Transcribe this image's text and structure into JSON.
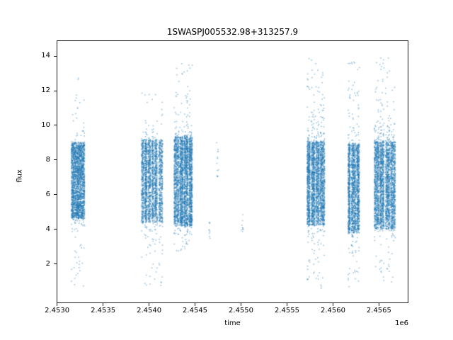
{
  "chart_data": {
    "type": "scatter",
    "title": "1SWASPJ005532.98+313257.9",
    "xlabel": "time",
    "ylabel": "flux",
    "x_offset_label": "1e6",
    "xlim": [
      2452995,
      2456820
    ],
    "ylim": [
      -0.25,
      14.9
    ],
    "grid": false,
    "legend": "none",
    "point_color": "#1f77b4",
    "background_color": "#ffffff",
    "xticks": [
      {
        "value": 2453000,
        "label": "2.4530"
      },
      {
        "value": 2453500,
        "label": "2.4535"
      },
      {
        "value": 2454000,
        "label": "2.4540"
      },
      {
        "value": 2454500,
        "label": "2.4545"
      },
      {
        "value": 2455000,
        "label": "2.4550"
      },
      {
        "value": 2455500,
        "label": "2.4555"
      },
      {
        "value": 2456000,
        "label": "2.4560"
      },
      {
        "value": 2456500,
        "label": "2.4565"
      }
    ],
    "yticks": [
      {
        "value": 2,
        "label": "2"
      },
      {
        "value": 4,
        "label": "4"
      },
      {
        "value": 6,
        "label": "6"
      },
      {
        "value": 8,
        "label": "8"
      },
      {
        "value": 10,
        "label": "10"
      },
      {
        "value": 12,
        "label": "12"
      },
      {
        "value": 14,
        "label": "14"
      }
    ],
    "clusters": [
      {
        "n": 2400,
        "stripes": [
          [
            2453155,
            2453300,
            1
          ]
        ],
        "band": [
          4.7,
          8.95
        ],
        "up_max": 12.9,
        "up_frac": 0.015,
        "up_pow": 3.0,
        "lo_min": 0.7,
        "lo_frac": 0.03,
        "lo_pow": 3.2
      },
      {
        "n": 2600,
        "stripes": [
          [
            2453918,
            2453944,
            0.8
          ],
          [
            2453952,
            2453979,
            1
          ],
          [
            2453987,
            2454018,
            1
          ],
          [
            2454029,
            2454052,
            0.7
          ],
          [
            2454060,
            2454090,
            1
          ],
          [
            2454106,
            2454148,
            1.1
          ]
        ],
        "band": [
          4.45,
          9.1
        ],
        "up_max": 11.9,
        "up_frac": 0.02,
        "up_pow": 2.8,
        "lo_min": 0.7,
        "lo_frac": 0.03,
        "lo_pow": 3.0
      },
      {
        "n": 3200,
        "stripes": [
          [
            2454271,
            2454325,
            1
          ],
          [
            2454333,
            2454371,
            0.9
          ],
          [
            2454379,
            2454425,
            1
          ],
          [
            2454433,
            2454471,
            0.95
          ]
        ],
        "band": [
          4.25,
          9.3
        ],
        "up_max": 13.7,
        "up_frac": 0.03,
        "up_pow": 2.8,
        "lo_min": 2.5,
        "lo_frac": 0.02,
        "lo_pow": 2.5
      },
      {
        "n": 9,
        "stripes": [
          [
            2454648,
            2454664,
            1
          ]
        ],
        "band": [
          3.4,
          4.7
        ],
        "up_max": 4.7,
        "up_frac": 0,
        "up_pow": 1,
        "lo_min": 3.4,
        "lo_frac": 0,
        "lo_pow": 1
      },
      {
        "n": 13,
        "stripes": [
          [
            2454733,
            2454756,
            1
          ]
        ],
        "band": [
          6.6,
          9.0
        ],
        "up_max": 9.0,
        "up_frac": 0,
        "up_pow": 1,
        "lo_min": 6.6,
        "lo_frac": 0,
        "lo_pow": 1
      },
      {
        "n": 9,
        "stripes": [
          [
            2455002,
            2455025,
            1
          ]
        ],
        "band": [
          3.8,
          4.8
        ],
        "up_max": 4.8,
        "up_frac": 0,
        "up_pow": 1,
        "lo_min": 3.8,
        "lo_frac": 0,
        "lo_pow": 1
      },
      {
        "n": 2900,
        "stripes": [
          [
            2455718,
            2455752,
            1
          ],
          [
            2455764,
            2455802,
            1
          ],
          [
            2455810,
            2455852,
            0.9
          ],
          [
            2455860,
            2455910,
            1.1
          ]
        ],
        "band": [
          4.3,
          9.0
        ],
        "up_max": 13.9,
        "up_frac": 0.05,
        "up_pow": 2.9,
        "lo_min": 0.6,
        "lo_frac": 0.03,
        "lo_pow": 2.8
      },
      {
        "n": 2000,
        "stripes": [
          [
            2456164,
            2456187,
            0.8
          ],
          [
            2456198,
            2456248,
            1.2
          ],
          [
            2456256,
            2456287,
            0.9
          ]
        ],
        "band": [
          3.85,
          8.85
        ],
        "up_max": 14.1,
        "up_frac": 0.045,
        "up_pow": 2.9,
        "lo_min": 0.5,
        "lo_frac": 0.025,
        "lo_pow": 2.8
      },
      {
        "n": 3100,
        "stripes": [
          [
            2456448,
            2456502,
            1
          ],
          [
            2456510,
            2456556,
            1
          ],
          [
            2456571,
            2456617,
            0.95
          ],
          [
            2456625,
            2456679,
            1.05
          ]
        ],
        "band": [
          4.1,
          9.0
        ],
        "up_max": 13.9,
        "up_frac": 0.05,
        "up_pow": 2.9,
        "lo_min": 0.9,
        "lo_frac": 0.03,
        "lo_pow": 2.8
      }
    ]
  }
}
